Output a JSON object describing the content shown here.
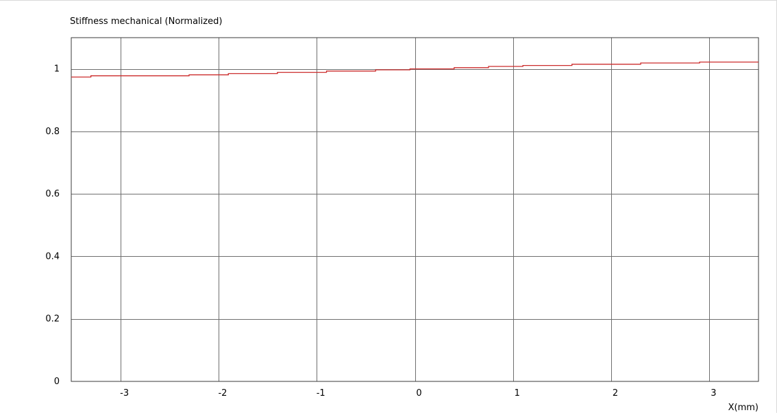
{
  "chart_data": {
    "type": "line",
    "title": "Stiffness mechanical (Normalized)",
    "xlabel": "X(mm)",
    "ylabel": "",
    "xlim": [
      -3.5,
      3.5
    ],
    "ylim": [
      0,
      1.1
    ],
    "x_ticks": [
      -3,
      -2,
      -1,
      0,
      1,
      2,
      3
    ],
    "x_tick_labels": [
      "-3",
      "-2",
      "-1",
      "0",
      "1",
      "2",
      "3"
    ],
    "y_ticks": [
      0,
      0.2,
      0.4,
      0.6,
      0.8,
      1
    ],
    "y_tick_labels": [
      "0",
      "0.2",
      "0.4",
      "0.6",
      "0.8",
      "1"
    ],
    "grid": true,
    "step": true,
    "series": [
      {
        "color": "#cc2b2b",
        "x": [
          -3.5,
          -3.3,
          -2.3,
          -1.9,
          -1.4,
          -0.9,
          -0.4,
          -0.05,
          0.4,
          0.75,
          1.1,
          1.6,
          2.3,
          2.9,
          3.5
        ],
        "y": [
          0.974,
          0.978,
          0.981,
          0.985,
          0.989,
          0.993,
          0.997,
          1.0,
          1.004,
          1.008,
          1.011,
          1.015,
          1.019,
          1.022,
          1.022
        ]
      }
    ]
  }
}
